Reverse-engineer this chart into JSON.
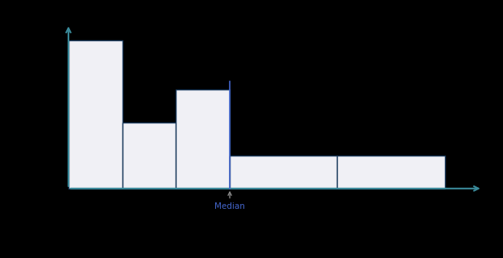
{
  "bar_lefts": [
    0,
    1,
    2,
    3,
    5
  ],
  "bar_widths": [
    1,
    1,
    1,
    2,
    2
  ],
  "bar_heights": [
    9,
    4,
    6,
    2,
    2
  ],
  "bar_facecolor": "#f0f0f5",
  "bar_edgecolor": "#1a3a5c",
  "bar_linewidth": 1.0,
  "median_x": 3.0,
  "median_label": "Median",
  "median_color": "#4466cc",
  "median_linewidth": 1.2,
  "axis_color": "#3a8a9a",
  "background_color": "#000000",
  "plot_bg": "#000000",
  "xlim": [
    -0.15,
    7.8
  ],
  "ylim": [
    -1.4,
    10.2
  ],
  "figsize": [
    6.24,
    3.2
  ],
  "dpi": 100,
  "axis_origin_x": 0.0,
  "axis_origin_y": 0.0
}
